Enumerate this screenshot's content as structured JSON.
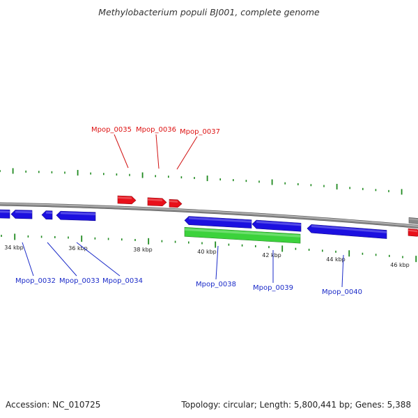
{
  "title": "Methylobacterium populi BJ001, complete genome",
  "footer": {
    "accession": "Accession: NC_010725",
    "topology": "Topology: circular; Length: 5,800,441 bp; Genes: 5,388"
  },
  "colors": {
    "forward": "#e8101a",
    "reverse": "#1c10e0",
    "rna": "#3cd23c",
    "backbone": "#8a8a8a",
    "ticks": "#1f8a1f",
    "label_forward": "#d11111",
    "label_reverse": "#1a2ac8"
  },
  "scale_labels": [
    "34 kbp",
    "36 kbp",
    "38 kbp",
    "40 kbp",
    "42 kbp",
    "44 kbp",
    "46 kbp"
  ],
  "labels_forward": [
    "Mpop_0035",
    "Mpop_0036",
    "Mpop_0037"
  ],
  "labels_reverse": [
    "Mpop_0032",
    "Mpop_0033",
    "Mpop_0034",
    "Mpop_0038",
    "Mpop_0039",
    "Mpop_0040"
  ]
}
